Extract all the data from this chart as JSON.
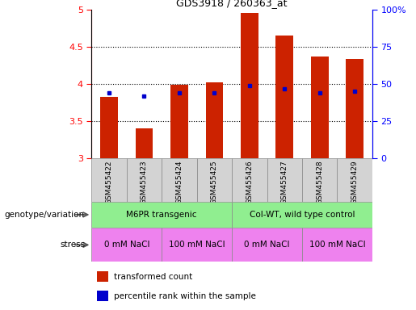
{
  "title": "GDS3918 / 260363_at",
  "categories": [
    "GSM455422",
    "GSM455423",
    "GSM455424",
    "GSM455425",
    "GSM455426",
    "GSM455427",
    "GSM455428",
    "GSM455429"
  ],
  "red_values": [
    3.82,
    3.4,
    3.99,
    4.02,
    4.95,
    4.65,
    4.37,
    4.33
  ],
  "blue_values": [
    3.88,
    3.83,
    3.88,
    3.88,
    3.98,
    3.93,
    3.88,
    3.9
  ],
  "ylim": [
    3.0,
    5.0
  ],
  "yticks_left": [
    3.0,
    3.5,
    4.0,
    4.5,
    5.0
  ],
  "yticks_right": [
    0,
    25,
    50,
    75,
    100
  ],
  "genotype_labels": [
    "M6PR transgenic",
    "Col-WT, wild type control"
  ],
  "genotype_ranges": [
    [
      0,
      3
    ],
    [
      4,
      7
    ]
  ],
  "stress_labels": [
    "0 mM NaCl",
    "100 mM NaCl",
    "0 mM NaCl",
    "100 mM NaCl"
  ],
  "stress_ranges": [
    [
      0,
      1
    ],
    [
      2,
      3
    ],
    [
      4,
      5
    ],
    [
      6,
      7
    ]
  ],
  "genotype_color": "#90EE90",
  "stress_color": "#EE82EE",
  "bar_color": "#CC2200",
  "blue_color": "#0000CC",
  "xtick_bg_color": "#D3D3D3",
  "legend_text_1": "transformed count",
  "legend_text_2": "percentile rank within the sample"
}
